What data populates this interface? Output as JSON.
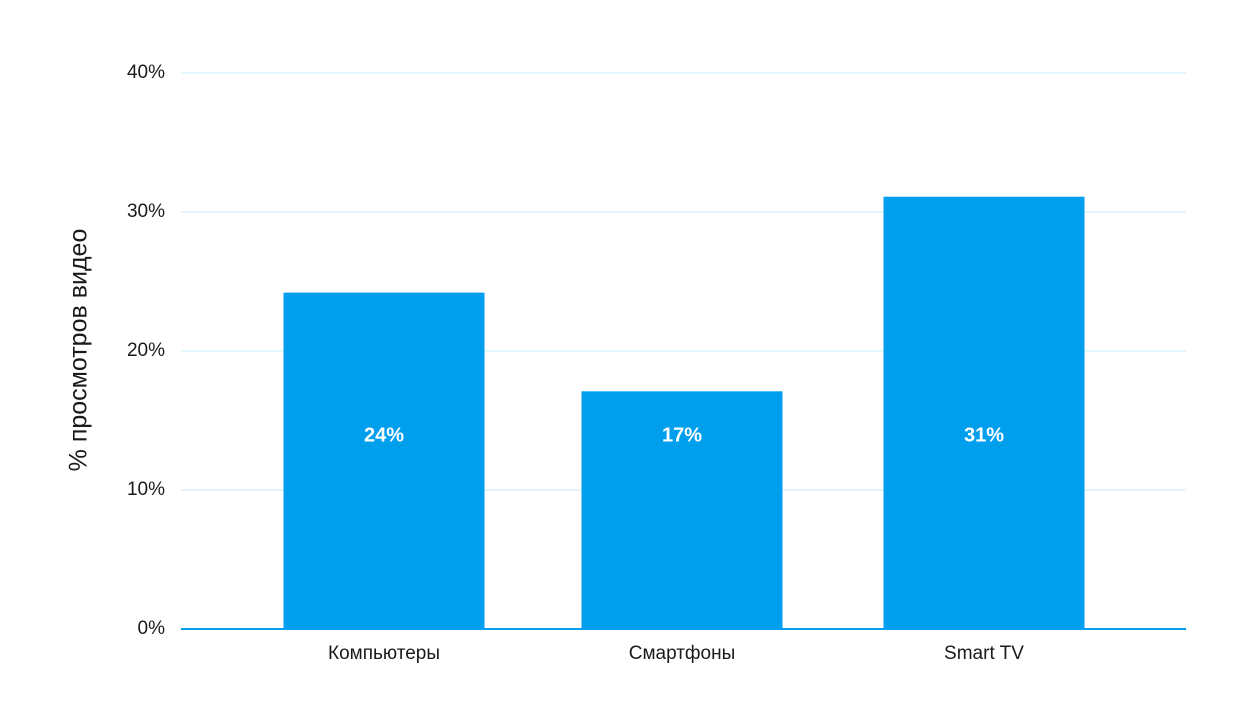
{
  "chart_data": {
    "type": "bar",
    "categories": [
      "Компьютеры",
      "Смартфоны",
      "Smart TV"
    ],
    "values": [
      24.2,
      17.1,
      31.1
    ],
    "data_labels": [
      "24%",
      "17%",
      "31%"
    ],
    "ylabel": "% просмотров видео",
    "ylim": [
      0,
      40
    ],
    "yticks": [
      0,
      10,
      20,
      30,
      40
    ],
    "ytick_labels": [
      "0%",
      "10%",
      "20%",
      "30%",
      "40%"
    ],
    "grid": true,
    "colors": {
      "bar": "#009fee",
      "grid": "#c7eef8",
      "axis": "#009fee"
    }
  }
}
